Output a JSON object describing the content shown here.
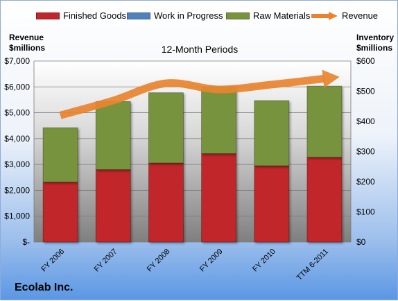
{
  "company_name": "Ecolab Inc.",
  "chart_data": {
    "type": "bar",
    "stacked": true,
    "title": "12-Month Periods",
    "categories": [
      "FY 2006",
      "FY 2007",
      "FY 2008",
      "FY 2009",
      "FY 2010",
      "TTM 6-2011"
    ],
    "left_axis": {
      "title": "Revenue\n$millions",
      "ylim": [
        0,
        7000
      ],
      "ticks": [
        0,
        1000,
        2000,
        3000,
        4000,
        5000,
        6000,
        7000
      ],
      "tick_labels": [
        "$-",
        "$1,000",
        "$2,000",
        "$3,000",
        "$4,000",
        "$5,000",
        "$6,000",
        "$7,000"
      ]
    },
    "right_axis": {
      "title": "Inventory\n$millions",
      "ylim": [
        0,
        600
      ],
      "ticks": [
        0,
        100,
        200,
        300,
        400,
        500,
        600
      ],
      "tick_labels": [
        "$0",
        "$100",
        "$200",
        "$300",
        "$400",
        "$500",
        "$600"
      ]
    },
    "series": [
      {
        "name": "Finished Goods",
        "axis": "right",
        "color": "#c0262c",
        "values": [
          199,
          240,
          262,
          293,
          253,
          281
        ]
      },
      {
        "name": "Work in Progress",
        "axis": "right",
        "color": "#4f81bd",
        "values": [
          0,
          0,
          0,
          0,
          0,
          0
        ]
      },
      {
        "name": "Raw Materials",
        "axis": "right",
        "color": "#77933c",
        "values": [
          180,
          226,
          233,
          222,
          216,
          236
        ]
      },
      {
        "name": "Revenue",
        "axis": "left",
        "type": "line",
        "color": "#e9832f",
        "values": [
          4900,
          5470,
          6140,
          5900,
          6090,
          6320
        ]
      }
    ],
    "grid": true,
    "legend_position": "top"
  }
}
